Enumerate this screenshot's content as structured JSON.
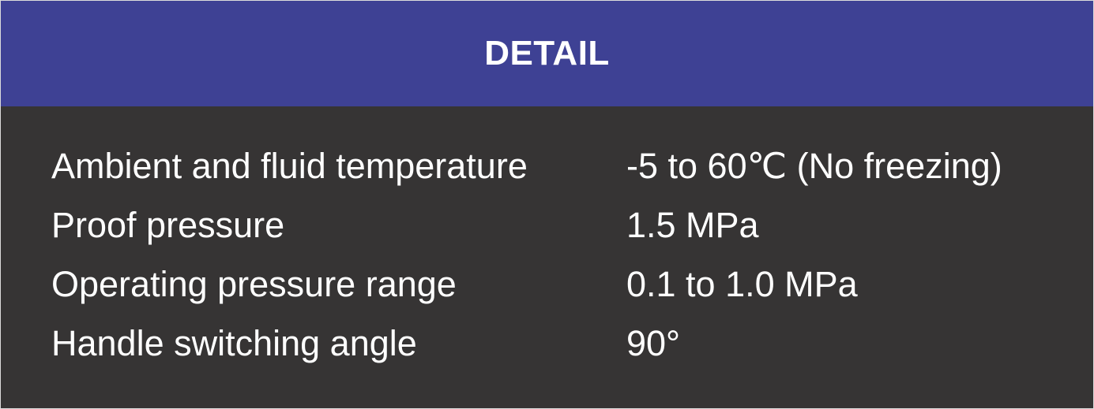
{
  "header": {
    "title": "DETAIL"
  },
  "specs": [
    {
      "label": "Ambient and fluid temperature",
      "value": "-5 to 60℃ (No freezing)"
    },
    {
      "label": "Proof pressure",
      "value": "1.5 MPa"
    },
    {
      "label": "Operating pressure range",
      "value": "0.1 to 1.0 MPa"
    },
    {
      "label": "Handle switching angle",
      "value": "90°"
    }
  ],
  "colors": {
    "header_bg": "#3e4194",
    "body_bg": "#363434",
    "text": "#ffffff"
  }
}
